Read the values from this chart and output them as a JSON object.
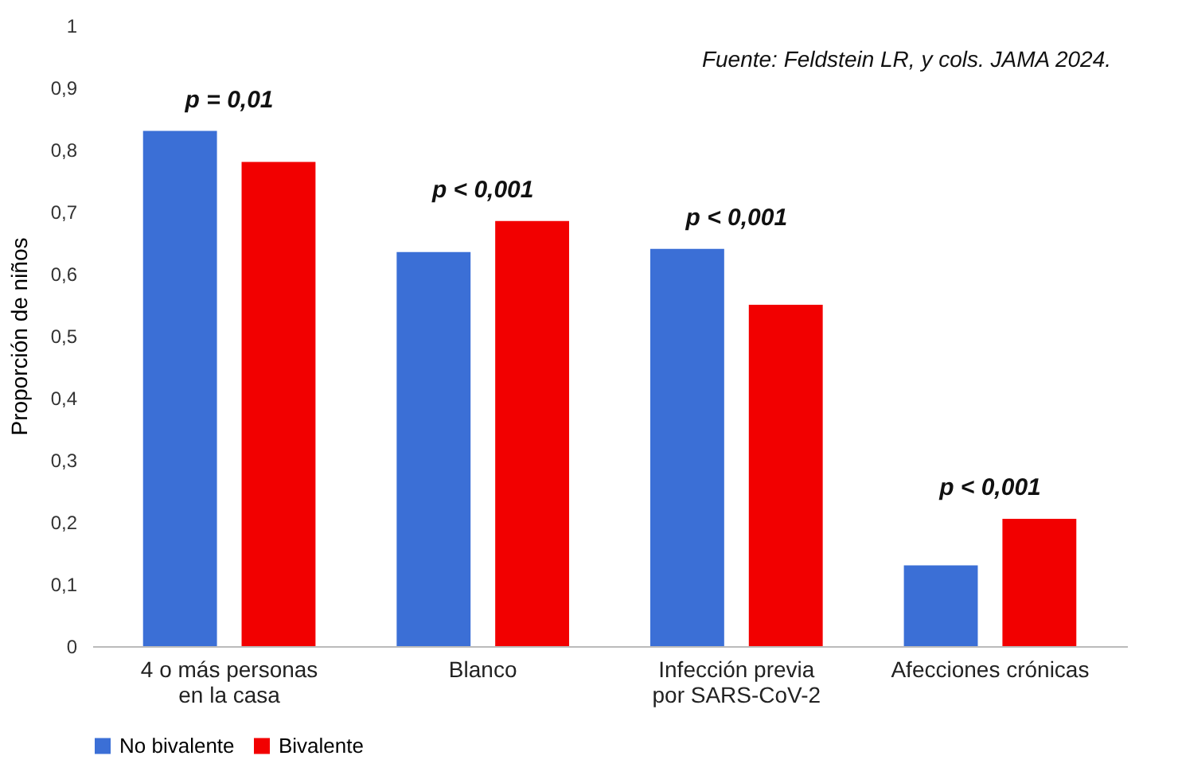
{
  "chart_data": {
    "type": "bar",
    "categories": [
      "4 o más personas\nen la casa",
      "Blanco",
      "Infección previa\npor SARS-CoV-2",
      "Afecciones crónicas"
    ],
    "series": [
      {
        "name": "No bivalente",
        "color": "#3b6fd6",
        "values": [
          0.83,
          0.635,
          0.64,
          0.13
        ]
      },
      {
        "name": "Bivalente",
        "color": "#f20000",
        "values": [
          0.78,
          0.685,
          0.55,
          0.205
        ]
      }
    ],
    "ylabel": "Proporción de niños",
    "ylim": [
      0,
      1
    ],
    "yticks": [
      0,
      {
        "value": 0.1,
        "label": "0,1"
      },
      {
        "value": 0.2,
        "label": "0,2"
      },
      {
        "value": 0.3,
        "label": "0,3"
      },
      {
        "value": 0.4,
        "label": "0,4"
      },
      {
        "value": 0.5,
        "label": "0,5"
      },
      {
        "value": 0.6,
        "label": "0,6"
      },
      {
        "value": 0.7,
        "label": "0,7"
      },
      {
        "value": 0.8,
        "label": "0,8"
      },
      {
        "value": 0.9,
        "label": "0,9"
      },
      1
    ],
    "annotations": [
      "Fuente: Feldstein LR, y cols. JAMA 2024.",
      "p = 0,01",
      "p < 0,001",
      "p < 0,001",
      "p < 0,001"
    ],
    "grid": false,
    "legend": "bottom"
  }
}
